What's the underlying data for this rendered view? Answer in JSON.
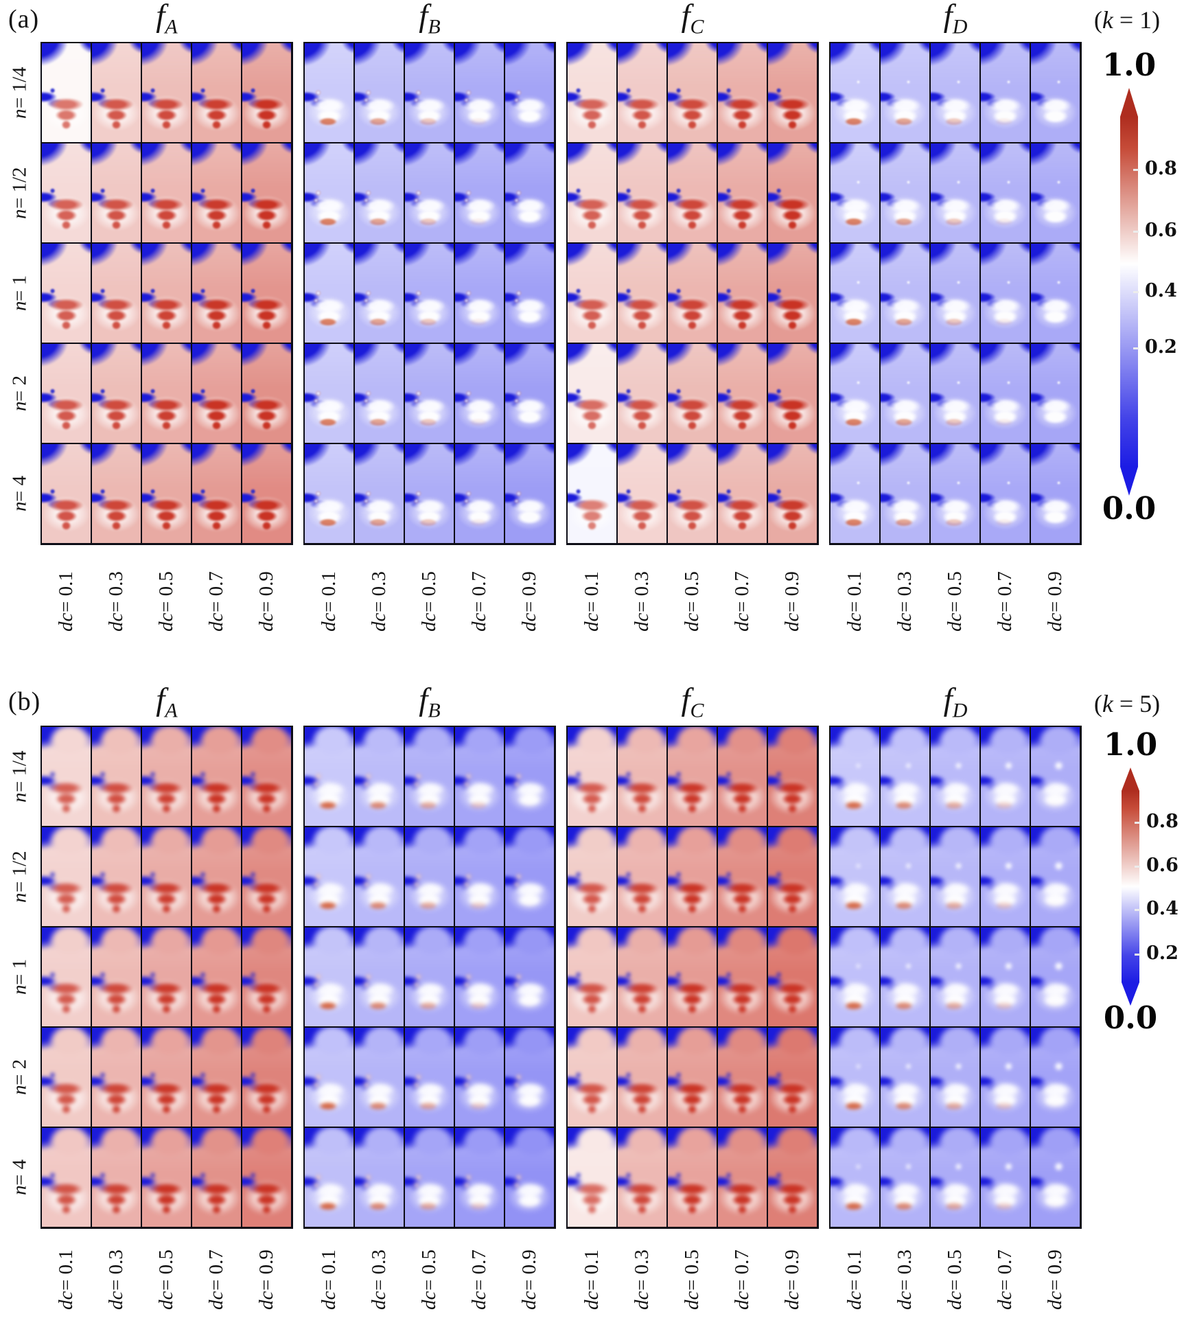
{
  "colormap": {
    "low": "#1c1ce1",
    "mid": "#ffffff",
    "high": "#c43426"
  },
  "art": {
    "lung": "#1c1cd2",
    "arc": "#ce5c36",
    "dot_blue": "#2024c8",
    "vert_boost": 0.3
  },
  "colorbar": {
    "max_label": "1.0",
    "min_label": "0.0",
    "tick_labels": [
      "0.8",
      "0.6",
      "0.4",
      "0.2"
    ]
  },
  "panels": [
    {
      "tag": "(a)",
      "k_pre": "(",
      "k_var": "k",
      "k_rest": " = 1)",
      "groups": [
        {
          "var": "f",
          "sub": "A",
          "kind": "warm"
        },
        {
          "var": "f",
          "sub": "B",
          "kind": "cool"
        },
        {
          "var": "f",
          "sub": "C",
          "kind": "warm"
        },
        {
          "var": "f",
          "sub": "D",
          "kind": "cool"
        }
      ],
      "row_labels": [
        {
          "var": "n",
          "rest": " = 1/4"
        },
        {
          "var": "n",
          "rest": " = 1/2"
        },
        {
          "var": "n",
          "rest": " = 1"
        },
        {
          "var": "n",
          "rest": " = 2"
        },
        {
          "var": "n",
          "rest": " = 4"
        }
      ],
      "col_labels": [
        {
          "var": "dc",
          "rest": " = 0.1"
        },
        {
          "var": "dc",
          "rest": " = 0.3"
        },
        {
          "var": "dc",
          "rest": " = 0.5"
        },
        {
          "var": "dc",
          "rest": " = 0.7"
        },
        {
          "var": "dc",
          "rest": " = 0.9"
        }
      ]
    },
    {
      "tag": "(b)",
      "k_pre": "(",
      "k_var": "k",
      "k_rest": " = 5)",
      "groups": [
        {
          "var": "f",
          "sub": "A",
          "kind": "warm"
        },
        {
          "var": "f",
          "sub": "B",
          "kind": "cool"
        },
        {
          "var": "f",
          "sub": "C",
          "kind": "warm"
        },
        {
          "var": "f",
          "sub": "D",
          "kind": "cool"
        }
      ],
      "row_labels": [
        {
          "var": "n",
          "rest": " = 1/4"
        },
        {
          "var": "n",
          "rest": " = 1/2"
        },
        {
          "var": "n",
          "rest": " = 1"
        },
        {
          "var": "n",
          "rest": " = 2"
        },
        {
          "var": "n",
          "rest": " = 4"
        }
      ],
      "col_labels": [
        {
          "var": "dc",
          "rest": " = 0.1"
        },
        {
          "var": "dc",
          "rest": " = 0.3"
        },
        {
          "var": "dc",
          "rest": " = 0.5"
        },
        {
          "var": "dc",
          "rest": " = 0.7"
        },
        {
          "var": "dc",
          "rest": " = 0.9"
        }
      ]
    }
  ],
  "heat": {
    "a": {
      "A": {
        "base": 0.555,
        "rows": [
          0,
          0.012,
          0.024,
          0.036,
          0.05
        ],
        "cols": [
          0,
          0.04,
          0.075,
          0.11,
          0.15
        ],
        "over": {
          "0_0": -0.045
        }
      },
      "B": {
        "base": 0.4,
        "rows": [
          0,
          -0.004,
          -0.008,
          -0.012,
          -0.016
        ],
        "cols": [
          0,
          -0.028,
          -0.05,
          -0.068,
          -0.085
        ]
      },
      "C": {
        "base": 0.56,
        "rows": [
          0,
          0.01,
          0.018,
          0.004,
          -0.02
        ],
        "cols": [
          0,
          0.04,
          0.072,
          0.104,
          0.138
        ],
        "over": {
          "3_0": -0.03,
          "4_0": -0.055
        }
      },
      "D": {
        "base": 0.395,
        "rows": [
          0,
          -0.006,
          -0.012,
          -0.018,
          -0.024
        ],
        "cols": [
          0,
          -0.016,
          -0.03,
          -0.044,
          -0.058
        ]
      }
    },
    "b": {
      "A": {
        "base": 0.575,
        "rows": [
          0,
          0.008,
          0.016,
          0.026,
          0.034
        ],
        "cols": [
          0,
          0.05,
          0.09,
          0.13,
          0.175
        ]
      },
      "B": {
        "base": 0.395,
        "rows": [
          0,
          -0.004,
          -0.01,
          -0.016,
          -0.022
        ],
        "cols": [
          0,
          -0.03,
          -0.055,
          -0.078,
          -0.098
        ]
      },
      "C": {
        "base": 0.585,
        "rows": [
          0,
          0.012,
          0.025,
          0.018,
          0.004
        ],
        "cols": [
          0,
          0.055,
          0.105,
          0.155,
          0.2
        ],
        "over": {
          "4_0": -0.05
        }
      },
      "D": {
        "base": 0.392,
        "rows": [
          0,
          -0.008,
          -0.016,
          -0.024,
          -0.032
        ],
        "cols": [
          0,
          -0.014,
          -0.028,
          -0.042,
          -0.056
        ]
      }
    }
  }
}
